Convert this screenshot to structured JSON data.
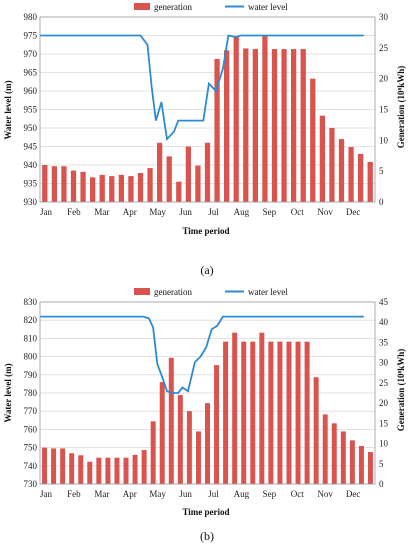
{
  "chart_data": [
    {
      "type": "bar+line",
      "caption": "(a)",
      "legend": {
        "bar_name": "generation",
        "line_name": "water level",
        "placement": "top"
      },
      "xlabel": "Time period",
      "ylabel_left": "Water level (m)",
      "ylabel_right": "Generation (10⁸kWh)",
      "months": [
        "Jan",
        "Feb",
        "Mar",
        "Apr",
        "May",
        "Jun",
        "Jul",
        "Aug",
        "Sep",
        "Oct",
        "Nov",
        "Dec"
      ],
      "ylim_left": [
        930,
        980
      ],
      "yticks_left": [
        930,
        935,
        940,
        945,
        950,
        955,
        960,
        965,
        970,
        975,
        980
      ],
      "ylim_right": [
        0,
        30
      ],
      "yticks_right": [
        0,
        5,
        10,
        15,
        20,
        25,
        30
      ],
      "bar_color": "#d9534f",
      "line_color": "#2e8bd1",
      "generation": [
        6.0,
        5.8,
        5.8,
        5.1,
        4.9,
        4.0,
        4.4,
        4.2,
        4.4,
        4.2,
        4.7,
        5.5,
        9.6,
        7.4,
        3.3,
        9.0,
        5.9,
        9.6,
        23.2,
        24.6,
        26.9,
        24.9,
        24.8,
        26.9,
        24.8,
        24.8,
        24.8,
        24.8,
        20.0,
        14.0,
        12.0,
        10.2,
        8.9,
        7.8,
        6.5
      ],
      "water_level": [
        [
          0,
          975
        ],
        [
          3.4,
          975
        ],
        [
          3.6,
          975
        ],
        [
          3.85,
          972.5
        ],
        [
          4.0,
          961
        ],
        [
          4.15,
          952
        ],
        [
          4.35,
          957
        ],
        [
          4.55,
          947
        ],
        [
          4.8,
          949
        ],
        [
          4.95,
          952
        ],
        [
          5.2,
          952
        ],
        [
          5.4,
          952
        ],
        [
          5.6,
          952
        ],
        [
          5.85,
          952
        ],
        [
          6.05,
          962
        ],
        [
          6.3,
          960
        ],
        [
          6.55,
          966
        ],
        [
          6.75,
          975
        ],
        [
          7.0,
          974.6
        ],
        [
          7.2,
          975
        ],
        [
          8.0,
          975
        ],
        [
          11.6,
          975
        ]
      ]
    },
    {
      "type": "bar+line",
      "caption": "(b)",
      "legend": {
        "bar_name": "generation",
        "line_name": "water level",
        "placement": "top"
      },
      "xlabel": "Time period",
      "ylabel_left": "Water level (m)",
      "ylabel_right": "Generation (10⁸kWh)",
      "months": [
        "Jan",
        "Feb",
        "Mar",
        "Apr",
        "May",
        "Jun",
        "Jul",
        "Aug",
        "Sep",
        "Oct",
        "Nov",
        "Dec"
      ],
      "ylim_left": [
        730,
        830
      ],
      "yticks_left": [
        730,
        740,
        750,
        760,
        770,
        780,
        790,
        800,
        810,
        820,
        830
      ],
      "ylim_right": [
        0,
        45
      ],
      "yticks_right": [
        0,
        5,
        10,
        15,
        20,
        25,
        30,
        35,
        40,
        45
      ],
      "bar_color": "#d9534f",
      "line_color": "#2e8bd1",
      "generation": [
        9.0,
        8.8,
        8.8,
        7.6,
        7.1,
        5.5,
        6.5,
        6.5,
        6.5,
        6.5,
        7.2,
        8.4,
        15.5,
        25.2,
        31.2,
        22.0,
        18.0,
        13.0,
        20.0,
        29.4,
        35.2,
        37.4,
        35.2,
        35.2,
        37.4,
        35.2,
        35.2,
        35.2,
        35.2,
        35.2,
        26.4,
        17.2,
        15.0,
        13.0,
        10.8,
        9.4,
        7.9
      ],
      "water_level": [
        [
          0,
          822
        ],
        [
          3.4,
          822
        ],
        [
          3.7,
          822
        ],
        [
          3.9,
          821
        ],
        [
          4.05,
          816
        ],
        [
          4.2,
          796
        ],
        [
          4.35,
          790
        ],
        [
          4.55,
          781
        ],
        [
          4.75,
          780
        ],
        [
          4.95,
          780
        ],
        [
          5.1,
          783
        ],
        [
          5.3,
          781
        ],
        [
          5.55,
          797
        ],
        [
          5.75,
          800
        ],
        [
          5.95,
          805
        ],
        [
          6.15,
          815
        ],
        [
          6.35,
          817
        ],
        [
          6.55,
          822
        ],
        [
          6.75,
          822
        ],
        [
          7.0,
          822
        ],
        [
          11.6,
          822
        ]
      ]
    }
  ]
}
